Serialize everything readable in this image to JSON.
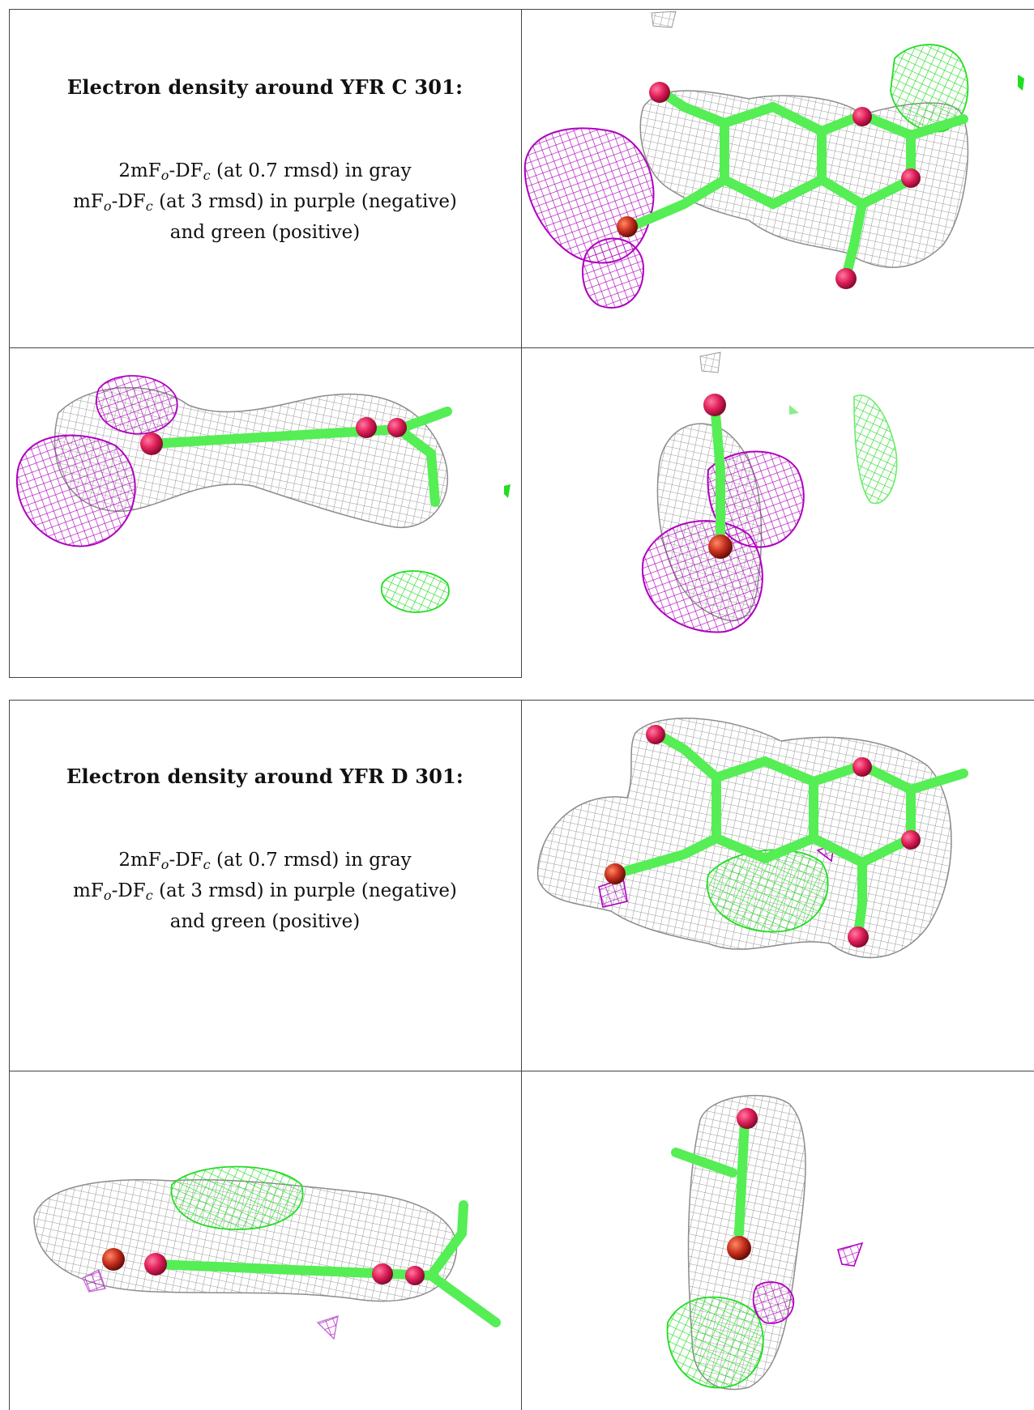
{
  "blocks": [
    {
      "title": "Electron density around YFR C 301:",
      "desc": {
        "line1": {
          "a": "2mF",
          "s1": "o",
          "b": "-DF",
          "s2": "c",
          "rest": " (at 0.7 rmsd) in gray"
        },
        "line2": {
          "a": "mF",
          "s1": "o",
          "b": "-DF",
          "s2": "c",
          "rest": " (at 3 rmsd) in purple (negative)"
        },
        "line3": "and green (positive)"
      }
    },
    {
      "title": "Electron density around YFR D 301:",
      "desc": {
        "line1": {
          "a": "2mF",
          "s1": "o",
          "b": "-DF",
          "s2": "c",
          "rest": " (at 0.7 rmsd) in gray"
        },
        "line2": {
          "a": "mF",
          "s1": "o",
          "b": "-DF",
          "s2": "c",
          "rest": " (at 3 rmsd) in purple (negative)"
        },
        "line3": "and green (positive)"
      }
    }
  ],
  "colors": {
    "mesh_gray": "#9a9a9a",
    "mesh_purple": "#b000c0",
    "mesh_green": "#22dd22",
    "bond_green": "#55ee55",
    "atom_red": "#e0205a",
    "atom_dark_red": "#c83020",
    "rule": "#444444"
  }
}
